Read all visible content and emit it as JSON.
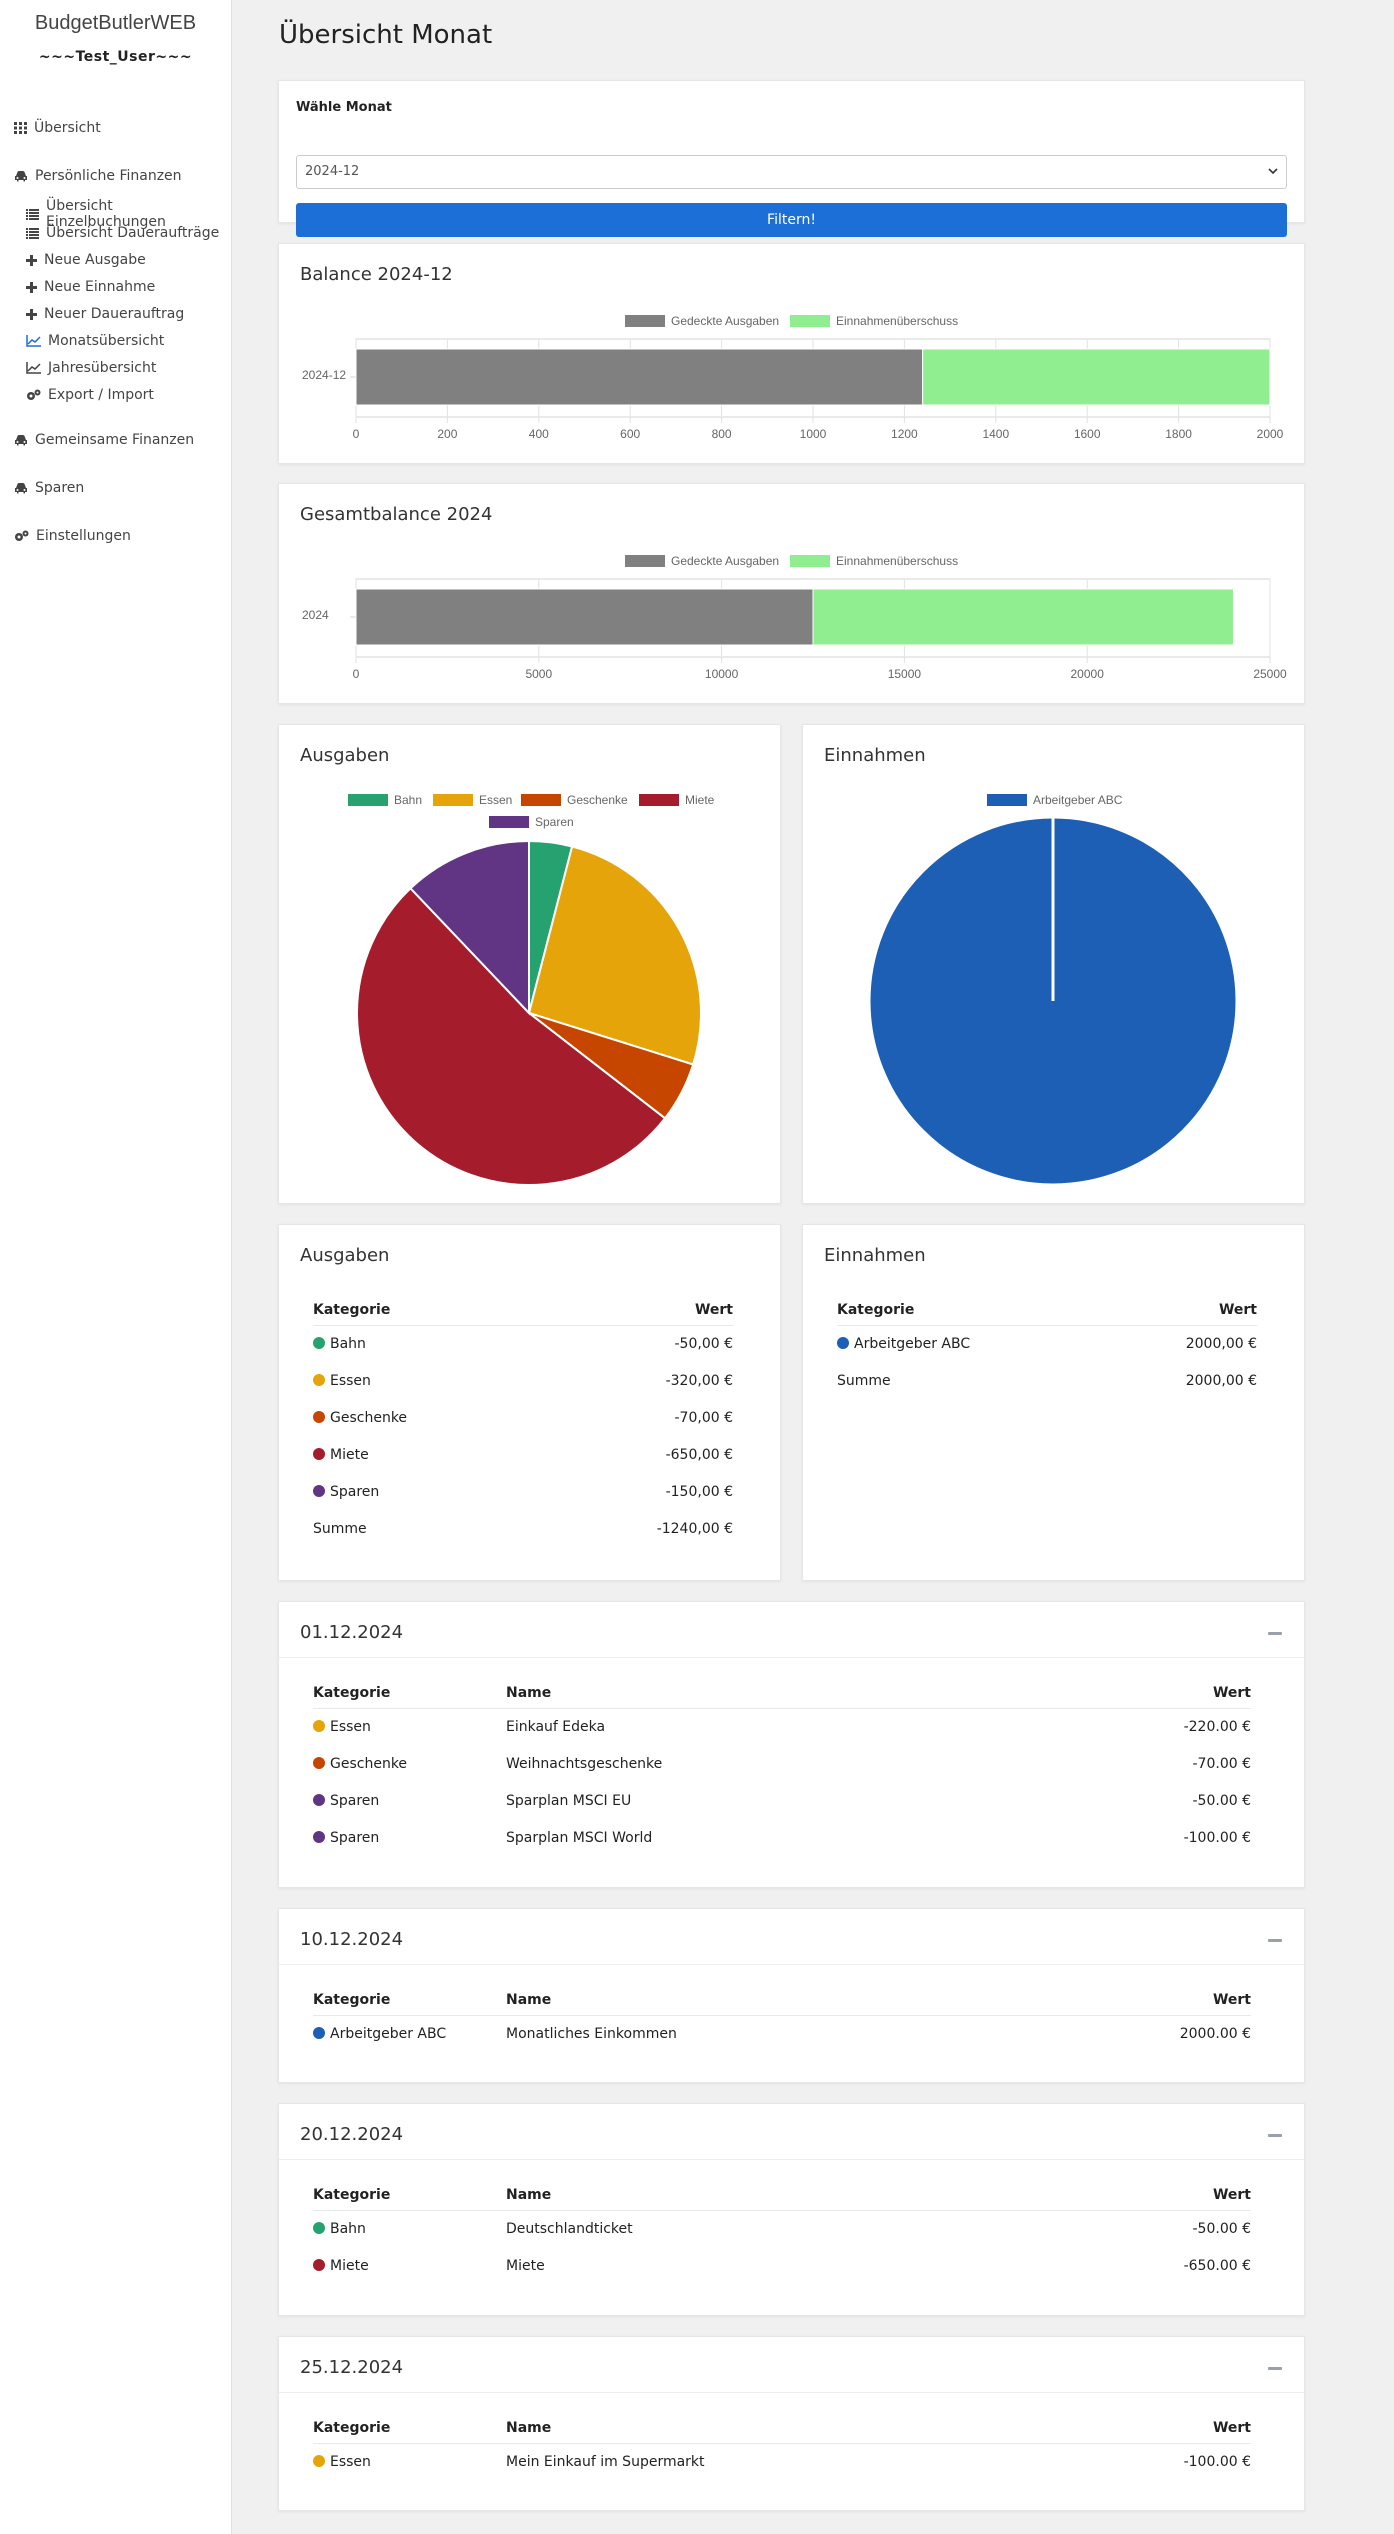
{
  "app": {
    "brand": "BudgetButlerWEB",
    "user": "~~~Test_User~~~"
  },
  "nav": {
    "overview": "Übersicht",
    "personal": "Persönliche Finanzen",
    "sub": [
      {
        "label": "Übersicht Einzelbuchungen",
        "icon": "list-icon"
      },
      {
        "label": "Übersicht Daueraufträge",
        "icon": "list-icon"
      },
      {
        "label": "Neue Ausgabe",
        "icon": "plus-icon"
      },
      {
        "label": "Neue Einnahme",
        "icon": "plus-icon"
      },
      {
        "label": "Neuer Dauerauftrag",
        "icon": "plus-icon"
      },
      {
        "label": "Monatsübersicht",
        "icon": "line-chart-icon"
      },
      {
        "label": "Jahresübersicht",
        "icon": "line-chart-icon"
      },
      {
        "label": "Export / Import",
        "icon": "gears-icon"
      }
    ],
    "shared": "Gemeinsame Finanzen",
    "savings": "Sparen",
    "settings": "Einstellungen"
  },
  "page": {
    "title": "Übersicht Monat"
  },
  "filter": {
    "label": "Wähle Monat",
    "selected": "2024-12",
    "button": "Filtern!"
  },
  "colors": {
    "covered": "#808080",
    "surplus": "#90ee90",
    "primary": "#1b6fd6",
    "Bahn": "#26a270",
    "Essen": "#e5a50a",
    "Geschenke": "#c64600",
    "Miete": "#a51d2d",
    "Sparen": "#613583",
    "Arbeitgeber ABC": "#1c5fb4"
  },
  "chart_data": [
    {
      "type": "bar",
      "orientation": "horizontal",
      "stacked": true,
      "title": "Balance 2024-12",
      "categories": [
        "2024-12"
      ],
      "series": [
        {
          "name": "Gedeckte Ausgaben",
          "values": [
            1240
          ]
        },
        {
          "name": "Einnahmenüberschuss",
          "values": [
            760
          ]
        }
      ],
      "xlim": [
        0,
        2000
      ],
      "xticks": [
        "0",
        "200",
        "400",
        "600",
        "800",
        "1000",
        "1200",
        "1400",
        "1600",
        "1800",
        "2000"
      ],
      "legend": "top"
    },
    {
      "type": "bar",
      "orientation": "horizontal",
      "stacked": true,
      "title": "Gesamtbalance 2024",
      "categories": [
        "2024"
      ],
      "series": [
        {
          "name": "Gedeckte Ausgaben",
          "values": [
            12500
          ]
        },
        {
          "name": "Einnahmenüberschuss",
          "values": [
            11500
          ]
        }
      ],
      "xlim": [
        0,
        25000
      ],
      "xticks": [
        "0",
        "5000",
        "10000",
        "15000",
        "20000",
        "25000"
      ],
      "legend": "top"
    },
    {
      "type": "pie",
      "title": "Ausgaben",
      "categories": [
        "Bahn",
        "Essen",
        "Geschenke",
        "Miete",
        "Sparen"
      ],
      "values": [
        50,
        320,
        70,
        650,
        150
      ],
      "legend": "top"
    },
    {
      "type": "pie",
      "title": "Einnahmen",
      "categories": [
        "Arbeitgeber ABC"
      ],
      "values": [
        2000
      ],
      "legend": "top"
    }
  ],
  "expenses_table": {
    "title": "Ausgaben",
    "headers": [
      "Kategorie",
      "Wert"
    ],
    "rows": [
      {
        "category": "Bahn",
        "value": "-50,00 €"
      },
      {
        "category": "Essen",
        "value": "-320,00 €"
      },
      {
        "category": "Geschenke",
        "value": "-70,00 €"
      },
      {
        "category": "Miete",
        "value": "-650,00 €"
      },
      {
        "category": "Sparen",
        "value": "-150,00 €"
      }
    ],
    "sum_label": "Summe",
    "sum_value": "-1240,00 €"
  },
  "income_table": {
    "title": "Einnahmen",
    "headers": [
      "Kategorie",
      "Wert"
    ],
    "rows": [
      {
        "category": "Arbeitgeber ABC",
        "value": "2000,00 €"
      }
    ],
    "sum_label": "Summe",
    "sum_value": "2000,00 €"
  },
  "day_headers": [
    "Kategorie",
    "Name",
    "Wert"
  ],
  "days": [
    {
      "date": "01.12.2024",
      "entries": [
        {
          "category": "Essen",
          "name": "Einkauf Edeka",
          "value": "-220.00 €"
        },
        {
          "category": "Geschenke",
          "name": "Weihnachtsgeschenke",
          "value": "-70.00 €"
        },
        {
          "category": "Sparen",
          "name": "Sparplan MSCI EU",
          "value": "-50.00 €"
        },
        {
          "category": "Sparen",
          "name": "Sparplan MSCI World",
          "value": "-100.00 €"
        }
      ]
    },
    {
      "date": "10.12.2024",
      "entries": [
        {
          "category": "Arbeitgeber ABC",
          "name": "Monatliches Einkommen",
          "value": "2000.00 €"
        }
      ]
    },
    {
      "date": "20.12.2024",
      "entries": [
        {
          "category": "Bahn",
          "name": "Deutschlandticket",
          "value": "-50.00 €"
        },
        {
          "category": "Miete",
          "name": "Miete",
          "value": "-650.00 €"
        }
      ]
    },
    {
      "date": "25.12.2024",
      "entries": [
        {
          "category": "Essen",
          "name": "Mein Einkauf im Supermarkt",
          "value": "-100.00 €"
        }
      ]
    }
  ]
}
